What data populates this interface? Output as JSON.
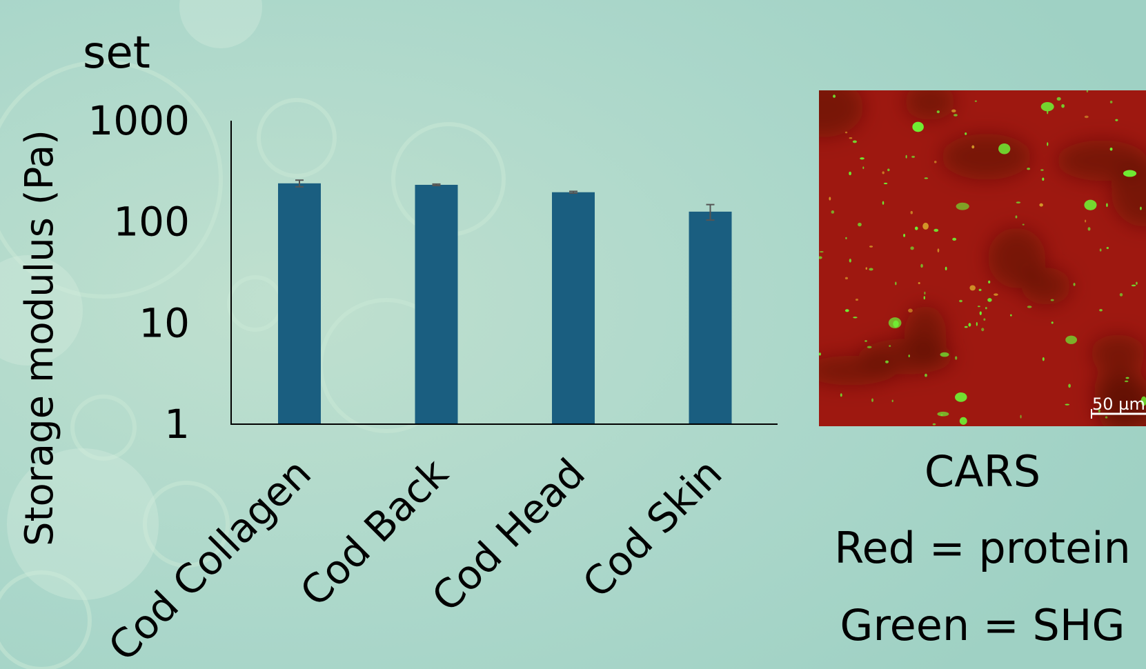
{
  "chart_data": {
    "type": "bar",
    "title": "set",
    "ylabel": "Storage modulus (Pa)",
    "xlabel": "",
    "yscale": "log",
    "ylim": [
      1,
      1000
    ],
    "yticks": [
      "1000",
      "100",
      "10",
      "1"
    ],
    "categories": [
      "Cod Collagen",
      "Cod Back",
      "Cod Head",
      "Cod Skin"
    ],
    "values": [
      240,
      232,
      196,
      126
    ],
    "errors": [
      18,
      4,
      4,
      22
    ],
    "bar_color": "#1a5e80",
    "grid": false,
    "legend": "none"
  },
  "micrograph": {
    "scale_bar": "50 µm",
    "colors": {
      "protein": "#9e1810",
      "shg": "#6ff034"
    }
  },
  "captions": {
    "method": "CARS",
    "red": "Red = protein",
    "green": "Green = SHG"
  },
  "background": {
    "color": "#a9d6c9",
    "accent": "#c6e6d6"
  }
}
